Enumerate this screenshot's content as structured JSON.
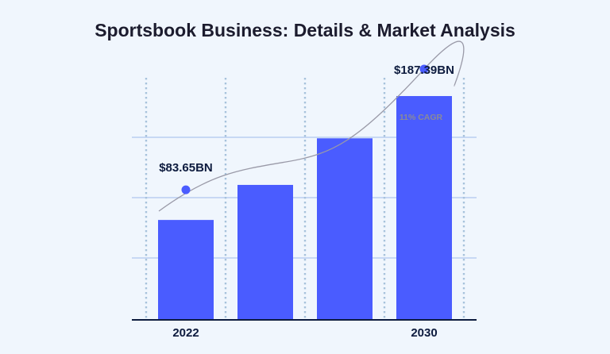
{
  "chart_data": {
    "type": "bar",
    "title": "Sportsbook Business: Details & Market Analysis",
    "categories": [
      "2022",
      "",
      "",
      "2030"
    ],
    "values": [
      83.65,
      113,
      152,
      187.39
    ],
    "ylim": [
      0,
      208
    ],
    "trend_line": {
      "start_label": "$83.65BN",
      "end_label": "$187.39BN",
      "start_value": 83.65,
      "end_value": 187.39
    },
    "annotation": "11% CAGR",
    "grid": true,
    "colors": {
      "bar": "#4a5cff",
      "marker": "#4a5cff",
      "trend_line": "#9a9aa8",
      "grid_horizontal": "#b9cdf1",
      "grid_vertical": "#a7c2dc",
      "axis": "#0d1b3e",
      "value_label": "#0d1b3e",
      "annotation": "#8a8a98",
      "background": "#f0f6fd"
    }
  }
}
